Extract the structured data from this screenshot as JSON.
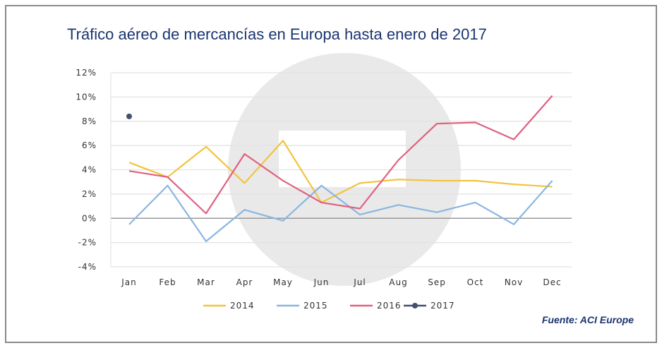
{
  "chart_data": {
    "type": "line",
    "title": "Tráfico aéreo de mercancías en Europa hasta enero de 2017",
    "source": "Fuente: ACI Europe",
    "categories": [
      "Jan",
      "Feb",
      "Mar",
      "Apr",
      "May",
      "Jun",
      "Jul",
      "Aug",
      "Sep",
      "Oct",
      "Nov",
      "Dec"
    ],
    "ylim": [
      -4,
      12
    ],
    "yticks": [
      -4,
      -2,
      0,
      2,
      4,
      6,
      8,
      10,
      12
    ],
    "ytick_labels": [
      "-4%",
      "-2%",
      "0%",
      "2%",
      "4%",
      "6%",
      "8%",
      "10%",
      "12%"
    ],
    "grid": true,
    "legend_placement": "bottom",
    "series": [
      {
        "name": "2014",
        "color": "#f2c43f",
        "values": [
          4.6,
          3.4,
          5.9,
          2.9,
          6.4,
          1.3,
          2.9,
          3.2,
          3.1,
          3.1,
          2.8,
          2.6
        ]
      },
      {
        "name": "2015",
        "color": "#8ab6e0",
        "values": [
          -0.5,
          2.7,
          -1.9,
          0.7,
          -0.2,
          2.7,
          0.3,
          1.1,
          0.5,
          1.3,
          -0.5,
          3.1
        ]
      },
      {
        "name": "2016",
        "color": "#e06080",
        "values": [
          3.9,
          3.4,
          0.4,
          5.3,
          3.1,
          1.3,
          0.8,
          4.8,
          7.8,
          7.9,
          6.5,
          10.1
        ]
      },
      {
        "name": "2017",
        "color": "#44506e",
        "values": [
          8.4,
          null,
          null,
          null,
          null,
          null,
          null,
          null,
          null,
          null,
          null,
          null
        ],
        "marker": true
      }
    ]
  }
}
